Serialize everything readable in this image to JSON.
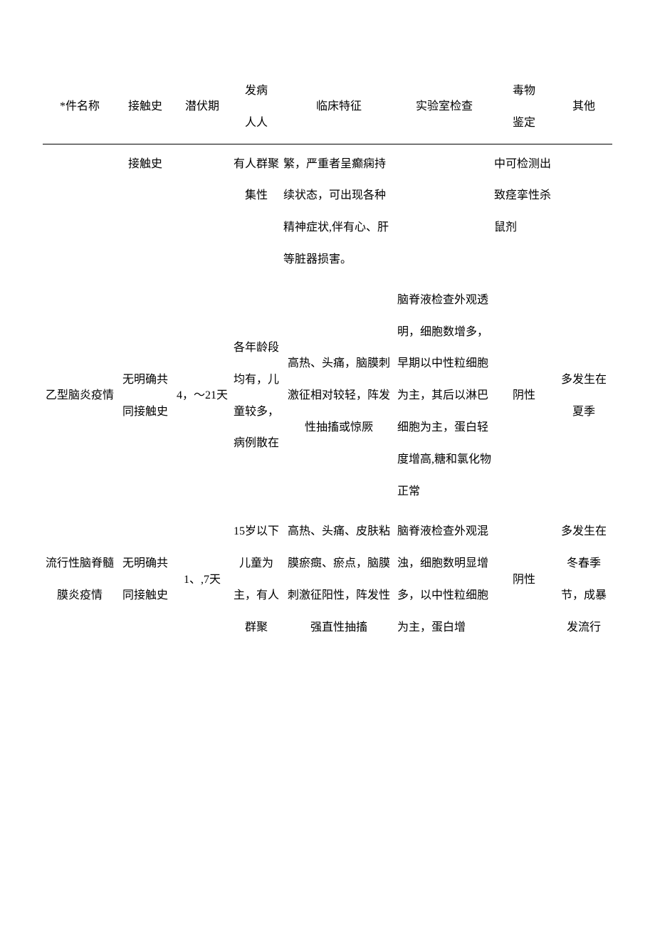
{
  "table": {
    "headers": {
      "name": "*件名称",
      "contact": "接触史",
      "incubation": "潜伏期",
      "population": "发病\n人人",
      "clinical": "临床特征",
      "lab": "实验室检查",
      "tox": "毒物\n鉴定",
      "other": "其他"
    },
    "rows": [
      {
        "name": "",
        "contact": "接触史",
        "incubation": "",
        "population": "有人群聚集性",
        "clinical": "繁，严重者呈癫痫持续状态，可出现各种精神症状,伴有心、肝等脏器损害。",
        "lab": "",
        "tox": "中可检测出致痉挛性杀鼠剂",
        "other": ""
      },
      {
        "name": "乙型脑炎疫情",
        "contact": "无明确共同接触史",
        "incubation": "4，～21天",
        "population": "各年龄段均有，儿童较多，病例散在",
        "clinical": "高热、头痛，脑膜刺激征相对较轻，阵发性抽搐或惊厥",
        "lab": "脑脊液检查外观透明，细胞数增多，早期以中性粒细胞为主，其后以淋巴细胞为主，蛋白轻度增高,糖和氯化物正常",
        "tox": "阴性",
        "other": "多发生在夏季"
      },
      {
        "name": "流行性脑脊髓膜炎疫情",
        "contact": "无明确共同接触史",
        "incubation": "1、,7天",
        "population": "15岁以下儿童为主，有人群聚",
        "clinical": "高热、头痛、皮肤粘膜瘀癍、瘀点，脑膜刺激征阳性，阵发性强直性抽搐",
        "lab": "脑脊液检查外观混浊，细胞数明显增多，以中性粒细胞为主，蛋白增",
        "tox": "阴性",
        "other": "多发生在冬春季节，成暴发流行"
      }
    ]
  }
}
